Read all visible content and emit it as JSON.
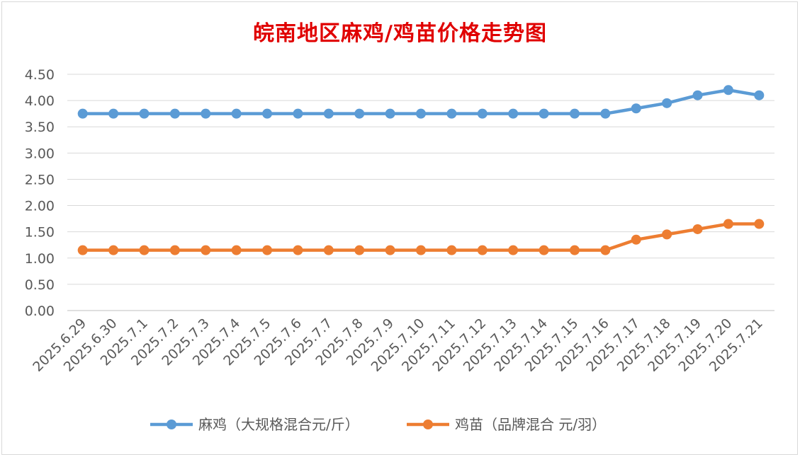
{
  "chart_data": {
    "type": "line",
    "title": "皖南地区麻鸡/鸡苗价格走势图",
    "categories": [
      "2025.6.29",
      "2025.6.30",
      "2025.7.1",
      "2025.7.2",
      "2025.7.3",
      "2025.7.4",
      "2025.7.5",
      "2025.7.6",
      "2025.7.7",
      "2025.7.8",
      "2025.7.9",
      "2025.7.10",
      "2025.7.11",
      "2025.7.12",
      "2025.7.13",
      "2025.7.14",
      "2025.7.15",
      "2025.7.16",
      "2025.7.17",
      "2025.7.18",
      "2025.7.19",
      "2025.7.20",
      "2025.7.21"
    ],
    "yticks": [
      "0.00",
      "0.50",
      "1.00",
      "1.50",
      "2.00",
      "2.50",
      "3.00",
      "3.50",
      "4.00",
      "4.50"
    ],
    "ylim": [
      0,
      4.5
    ],
    "grid": true,
    "legend_position": "bottom",
    "series": [
      {
        "name": "麻鸡（大规格混合元/斤）",
        "color": "#5b9bd5",
        "values": [
          3.75,
          3.75,
          3.75,
          3.75,
          3.75,
          3.75,
          3.75,
          3.75,
          3.75,
          3.75,
          3.75,
          3.75,
          3.75,
          3.75,
          3.75,
          3.75,
          3.75,
          3.75,
          3.85,
          3.95,
          4.1,
          4.2,
          4.1
        ]
      },
      {
        "name": "鸡苗（品牌混合 元/羽）",
        "color": "#ed7d31",
        "values": [
          1.15,
          1.15,
          1.15,
          1.15,
          1.15,
          1.15,
          1.15,
          1.15,
          1.15,
          1.15,
          1.15,
          1.15,
          1.15,
          1.15,
          1.15,
          1.15,
          1.15,
          1.15,
          1.35,
          1.45,
          1.55,
          1.65,
          1.65
        ]
      }
    ]
  }
}
